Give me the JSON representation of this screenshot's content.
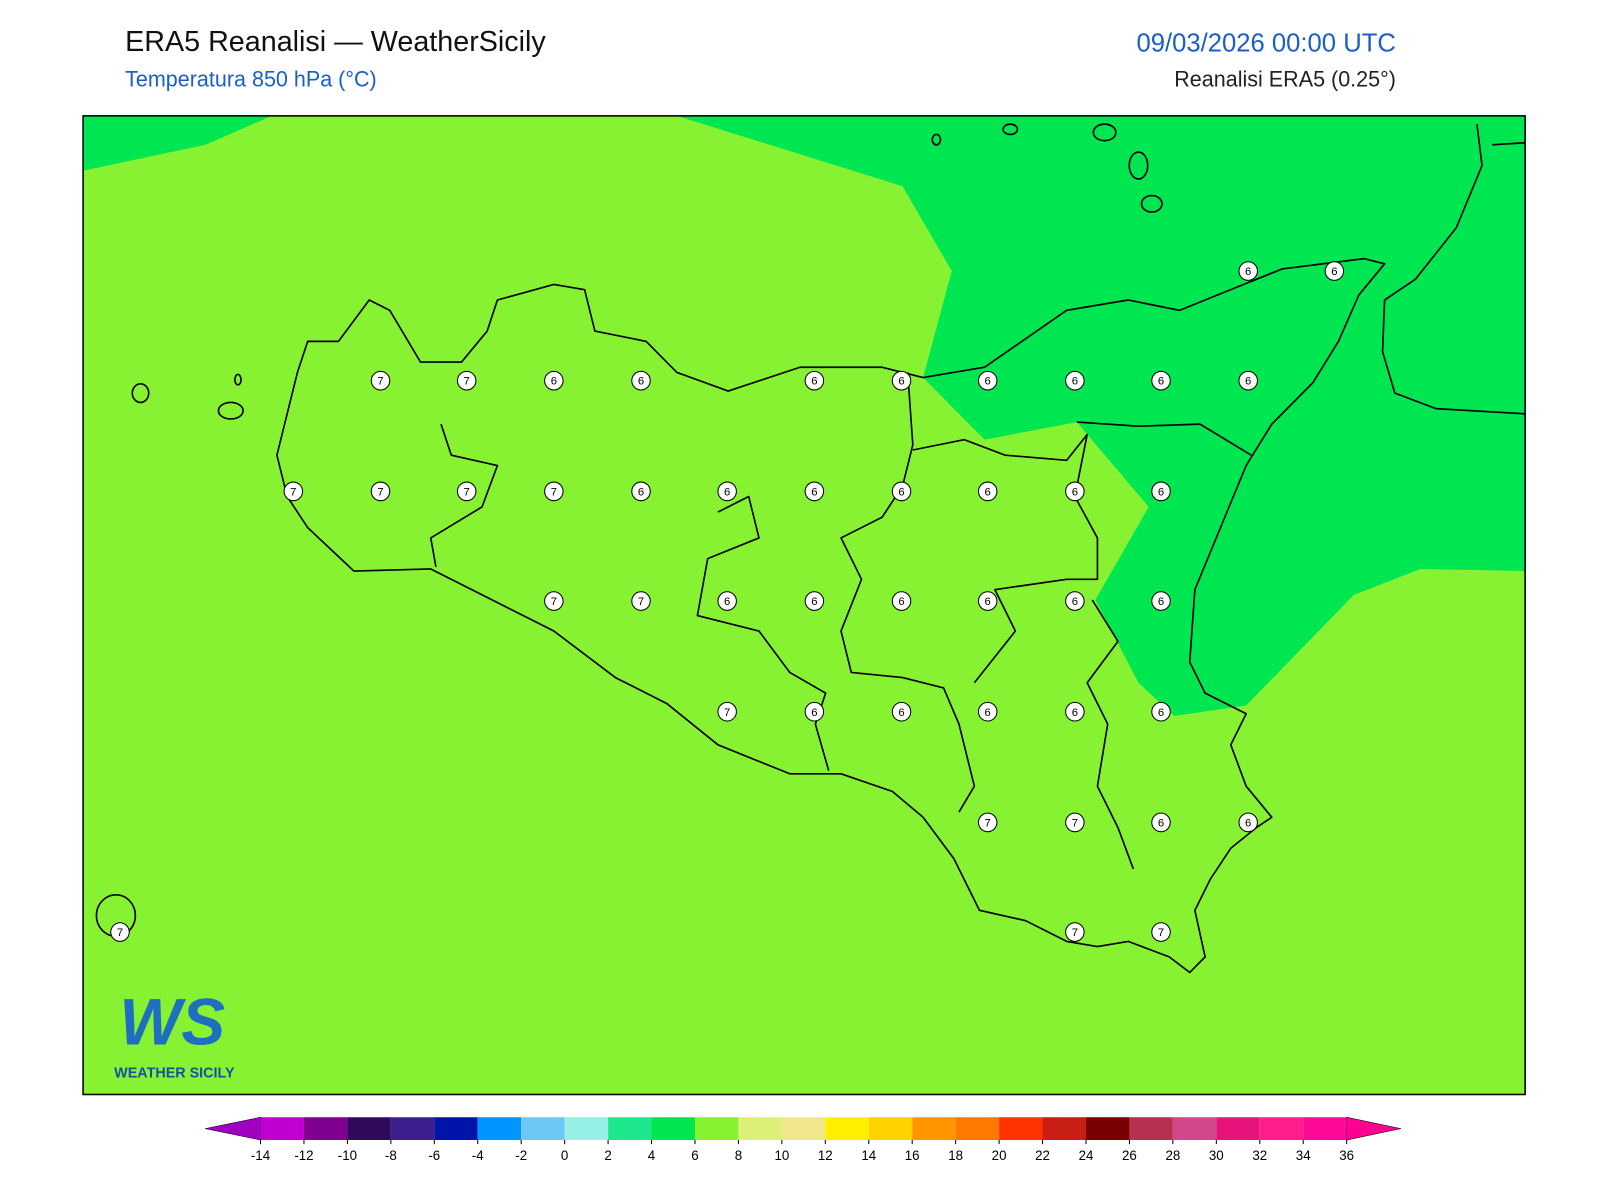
{
  "header": {
    "title": "ERA5 Reanalisi — WeatherSicily",
    "subtitle": "Temperatura 850 hPa (°C)",
    "datetime": "09/03/2026 00:00 UTC",
    "source": "Reanalisi ERA5 (0.25°)"
  },
  "logo": {
    "mark": "WS",
    "text": "WEATHER SICILY"
  },
  "stations": {
    "values": [
      6,
      6,
      7,
      7,
      6,
      6,
      6,
      6,
      6,
      6,
      6,
      6,
      7,
      7,
      7,
      7,
      6,
      6,
      6,
      6,
      6,
      6,
      6,
      7,
      7,
      6,
      6,
      6,
      6,
      6,
      6,
      7,
      6,
      6,
      6,
      6,
      6,
      7,
      7,
      6,
      6,
      7,
      7,
      7
    ]
  },
  "colorbar": {
    "ticks": [
      -14,
      -12,
      -10,
      -8,
      -6,
      -4,
      -2,
      0,
      2,
      4,
      6,
      8,
      10,
      12,
      14,
      16,
      18,
      20,
      22,
      24,
      26,
      28,
      30,
      32,
      34,
      36
    ],
    "colors": [
      "#c000d0",
      "#800090",
      "#300a5a",
      "#3c1e8c",
      "#0014aa",
      "#0096ff",
      "#6ec8f5",
      "#96f0e6",
      "#1ee68c",
      "#00e650",
      "#87f232",
      "#dcf078",
      "#f0e68c",
      "#fff000",
      "#ffd200",
      "#ff9600",
      "#ff7800",
      "#ff3200",
      "#c81e14",
      "#780000",
      "#b43250",
      "#d2468c",
      "#e6147a",
      "#ff1e8c",
      "#ff0a96"
    ],
    "under": "#a000c0",
    "over": "#ff0090"
  }
}
